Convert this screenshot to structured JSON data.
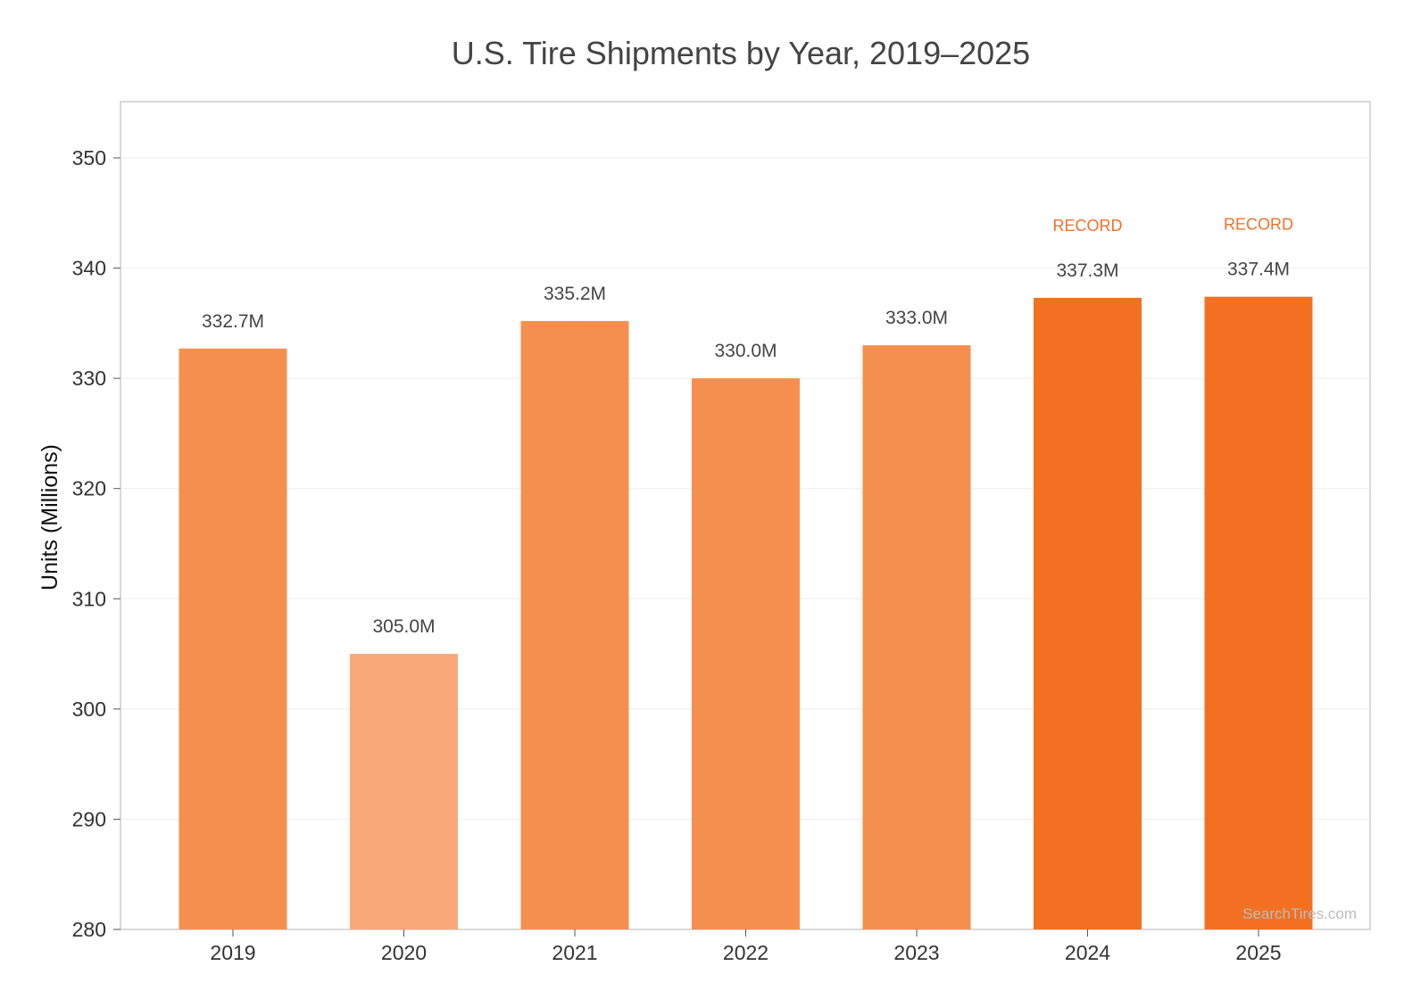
{
  "chart_data": {
    "type": "bar",
    "title": "U.S. Tire Shipments by Year, 2019–2025",
    "xlabel": "",
    "ylabel": "Units (Millions)",
    "ylim": [
      280,
      355
    ],
    "yticks": [
      280,
      290,
      300,
      310,
      320,
      330,
      340,
      350
    ],
    "grid": true,
    "categories": [
      "2019",
      "2020",
      "2021",
      "2022",
      "2023",
      "2024",
      "2025"
    ],
    "values": [
      332.7,
      305.0,
      335.2,
      330.0,
      333.0,
      337.3,
      337.4
    ],
    "value_labels": [
      "332.7M",
      "305.0M",
      "335.2M",
      "330.0M",
      "333.0M",
      "337.3M",
      "337.4M"
    ],
    "annotations": [
      "",
      "",
      "",
      "",
      "",
      "RECORD",
      "RECORD"
    ],
    "bar_colors": [
      "#f58f4d",
      "#f8a877",
      "#f58f4d",
      "#f58f4d",
      "#f58f4d",
      "#f27022",
      "#f27022"
    ],
    "annotation_color": "#f07028",
    "watermark": "SearchTires.com"
  }
}
